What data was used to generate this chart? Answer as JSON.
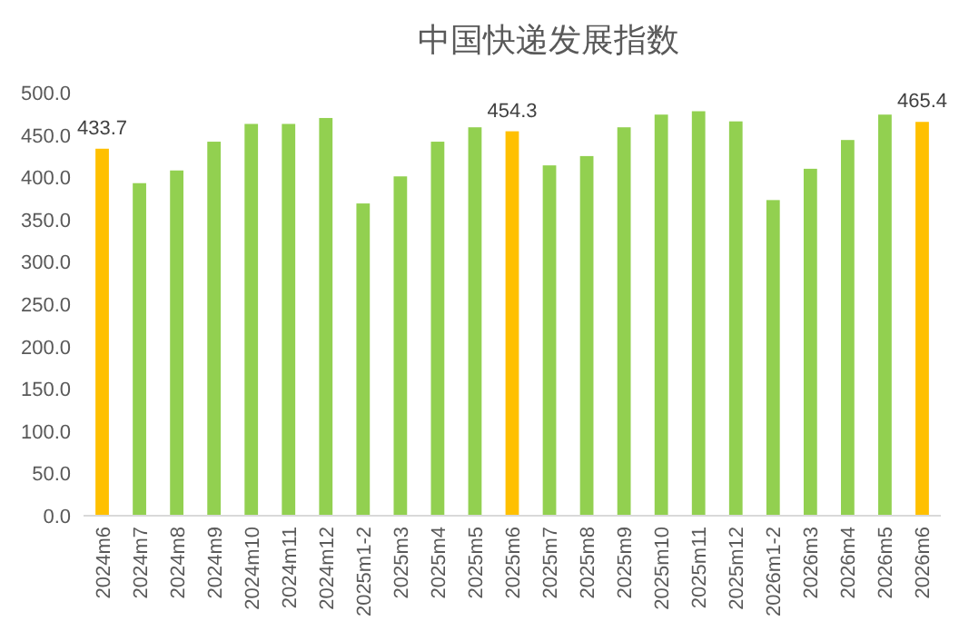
{
  "chart_data": {
    "type": "bar",
    "title": "中国快递发展指数",
    "categories": [
      "2024m6",
      "2024m7",
      "2024m8",
      "2024m9",
      "2024m10",
      "2024m11",
      "2024m12",
      "2025m1-2",
      "2025m3",
      "2025m4",
      "2025m5",
      "2025m6",
      "2025m7",
      "2025m8",
      "2025m9",
      "2025m10",
      "2025m11",
      "2025m12",
      "2026m1-2",
      "2026m3",
      "2026m4",
      "2026m5",
      "2026m6"
    ],
    "values": [
      433.7,
      393,
      408,
      442,
      463,
      463,
      470,
      369,
      401,
      442,
      459,
      454.3,
      414,
      425,
      459,
      474,
      478,
      466,
      373,
      410,
      444,
      474,
      465.4
    ],
    "colors": [
      "#ffc000",
      "#92d050",
      "#92d050",
      "#92d050",
      "#92d050",
      "#92d050",
      "#92d050",
      "#92d050",
      "#92d050",
      "#92d050",
      "#92d050",
      "#ffc000",
      "#92d050",
      "#92d050",
      "#92d050",
      "#92d050",
      "#92d050",
      "#92d050",
      "#92d050",
      "#92d050",
      "#92d050",
      "#92d050",
      "#ffc000"
    ],
    "value_labels": [
      "433.7",
      null,
      null,
      null,
      null,
      null,
      null,
      null,
      null,
      null,
      null,
      "454.3",
      null,
      null,
      null,
      null,
      null,
      null,
      null,
      null,
      null,
      null,
      "465.4"
    ],
    "ylim": [
      0,
      500
    ],
    "yticks": [
      {
        "value": 0,
        "label": "0.0"
      },
      {
        "value": 50,
        "label": "50.0"
      },
      {
        "value": 100,
        "label": "100.0"
      },
      {
        "value": 150,
        "label": "150.0"
      },
      {
        "value": 200,
        "label": "200.0"
      },
      {
        "value": 250,
        "label": "250.0"
      },
      {
        "value": 300,
        "label": "300.0"
      },
      {
        "value": 350,
        "label": "350.0"
      },
      {
        "value": 400,
        "label": "400.0"
      },
      {
        "value": 450,
        "label": "450.0"
      },
      {
        "value": 500,
        "label": "500.0"
      }
    ],
    "grid": false
  }
}
